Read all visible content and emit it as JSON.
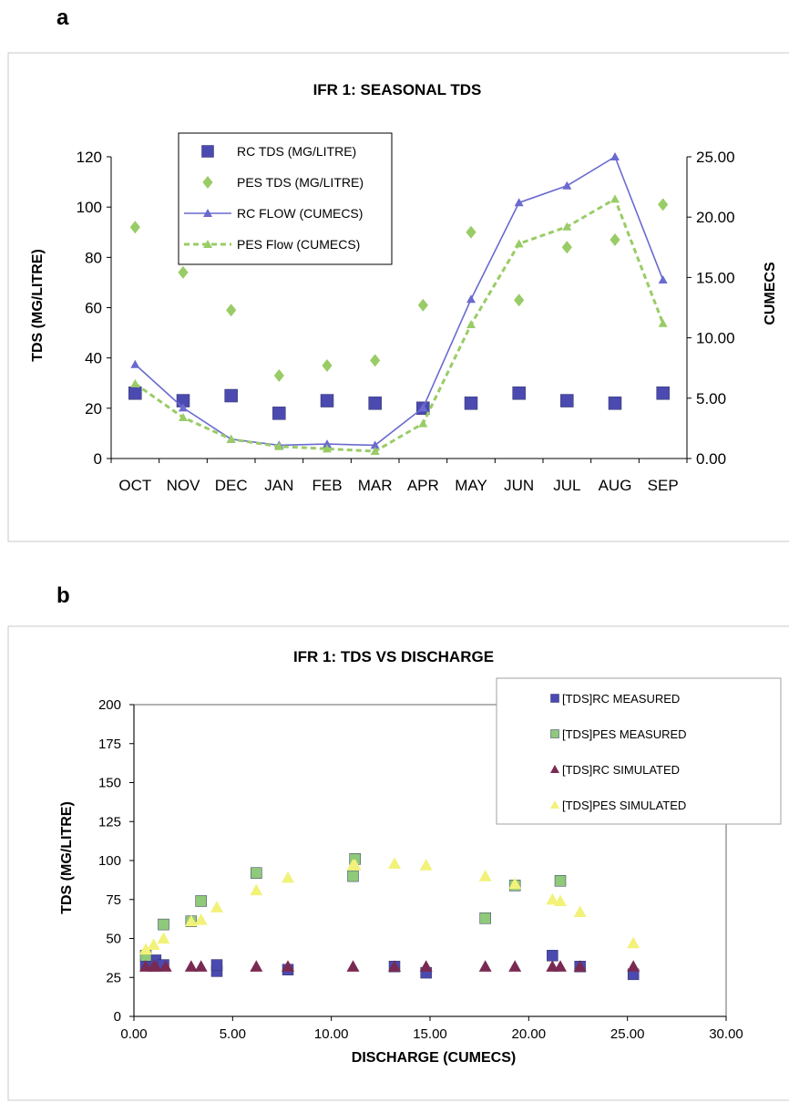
{
  "panels": {
    "a": "a",
    "b": "b"
  },
  "chart_data": [
    {
      "type": "line",
      "title": "IFR 1: SEASONAL TDS",
      "ylabel": "TDS (MG/LITRE)",
      "y2label": "CUMECS",
      "ylim": [
        0,
        120
      ],
      "y2lim": [
        0,
        25
      ],
      "yticks": [
        "0",
        "20",
        "40",
        "60",
        "80",
        "100",
        "120"
      ],
      "y2ticks": [
        "0.00",
        "5.00",
        "10.00",
        "15.00",
        "20.00",
        "25.00"
      ],
      "categories": [
        "OCT",
        "NOV",
        "DEC",
        "JAN",
        "FEB",
        "MAR",
        "APR",
        "MAY",
        "JUN",
        "JUL",
        "AUG",
        "SEP"
      ],
      "legend_position": "top-left",
      "series": [
        {
          "name": "RC TDS (MG/LITRE)",
          "kind": "marker-square",
          "axis": "left",
          "color": "#4a4ab0",
          "values": [
            26,
            23,
            25,
            18,
            23,
            22,
            20,
            22,
            26,
            23,
            22,
            26
          ]
        },
        {
          "name": "PES TDS (MG/LITRE)",
          "kind": "marker-diamond",
          "axis": "left",
          "color": "#99cc66",
          "values": [
            92,
            74,
            59,
            33,
            37,
            39,
            61,
            90,
            63,
            84,
            87,
            101
          ]
        },
        {
          "name": "RC FLOW (CUMECS)",
          "kind": "line-triangle",
          "axis": "right",
          "color": "#6a6ad0",
          "values": [
            7.8,
            4.2,
            1.6,
            1.1,
            1.2,
            1.1,
            4.2,
            13.2,
            21.2,
            22.6,
            25.0,
            14.8
          ]
        },
        {
          "name": "PES Flow (CUMECS)",
          "kind": "dashed-triangle",
          "axis": "right",
          "color": "#99cc66",
          "values": [
            6.2,
            3.4,
            1.6,
            1.0,
            0.8,
            0.6,
            2.9,
            11.1,
            17.8,
            19.2,
            21.5,
            11.2
          ]
        }
      ]
    },
    {
      "type": "scatter",
      "title": "IFR 1: TDS VS DISCHARGE",
      "xlabel": "DISCHARGE (CUMECS)",
      "ylabel": "TDS (MG/LITRE)",
      "xlim": [
        0,
        30
      ],
      "ylim": [
        0,
        200
      ],
      "xticks": [
        "0.00",
        "5.00",
        "10.00",
        "15.00",
        "20.00",
        "25.00",
        "30.00"
      ],
      "yticks": [
        "0",
        "25",
        "50",
        "75",
        "100",
        "125",
        "150",
        "175",
        "200"
      ],
      "legend_position": "top-right",
      "series": [
        {
          "name": "[TDS]RC MEASURED",
          "kind": "square",
          "color": "#4a4ab0",
          "points": [
            [
              0.6,
              33
            ],
            [
              1.1,
              36
            ],
            [
              1.5,
              33
            ],
            [
              4.2,
              29
            ],
            [
              4.2,
              33
            ],
            [
              7.8,
              30
            ],
            [
              13.2,
              32
            ],
            [
              14.8,
              28
            ],
            [
              21.2,
              39
            ],
            [
              22.6,
              32
            ],
            [
              25.3,
              27
            ]
          ]
        },
        {
          "name": "[TDS]PES MEASURED",
          "kind": "square",
          "color": "#8fc97a",
          "points": [
            [
              0.6,
              39
            ],
            [
              1.5,
              59
            ],
            [
              2.9,
              61
            ],
            [
              3.4,
              74
            ],
            [
              6.2,
              92
            ],
            [
              11.1,
              90
            ],
            [
              11.2,
              101
            ],
            [
              17.8,
              63
            ],
            [
              19.3,
              84
            ],
            [
              21.6,
              87
            ]
          ]
        },
        {
          "name": "[TDS]RC SIMULATED",
          "kind": "triangle",
          "color": "#7a2a52",
          "points": [
            [
              0.6,
              32
            ],
            [
              1.0,
              32
            ],
            [
              1.1,
              32
            ],
            [
              1.6,
              32
            ],
            [
              2.9,
              32
            ],
            [
              3.4,
              32
            ],
            [
              6.2,
              32
            ],
            [
              7.8,
              32
            ],
            [
              11.1,
              32
            ],
            [
              13.2,
              32
            ],
            [
              14.8,
              32
            ],
            [
              17.8,
              32
            ],
            [
              19.3,
              32
            ],
            [
              21.2,
              32
            ],
            [
              21.6,
              32
            ],
            [
              22.6,
              32
            ],
            [
              25.3,
              32
            ]
          ]
        },
        {
          "name": "[TDS]PES SIMULATED",
          "kind": "triangle",
          "color": "#f2f27a",
          "points": [
            [
              0.6,
              43
            ],
            [
              1.0,
              46
            ],
            [
              1.5,
              50
            ],
            [
              2.9,
              61
            ],
            [
              3.4,
              62
            ],
            [
              4.2,
              70
            ],
            [
              6.2,
              81
            ],
            [
              7.8,
              89
            ],
            [
              11.1,
              97
            ],
            [
              11.2,
              97
            ],
            [
              13.2,
              98
            ],
            [
              14.8,
              97
            ],
            [
              17.8,
              90
            ],
            [
              19.3,
              85
            ],
            [
              21.2,
              75
            ],
            [
              21.6,
              74
            ],
            [
              22.6,
              67
            ],
            [
              25.3,
              47
            ]
          ]
        }
      ]
    }
  ]
}
